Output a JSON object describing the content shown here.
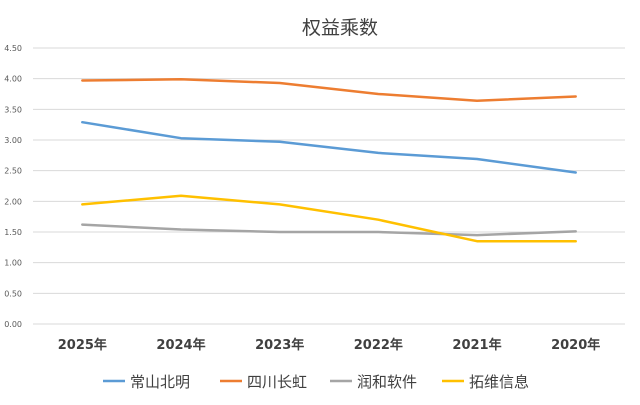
{
  "chart_data": {
    "type": "line",
    "title": "权益乘数",
    "categories": [
      "2025年",
      "2024年",
      "2023年",
      "2022年",
      "2021年",
      "2020年"
    ],
    "ylim": [
      0,
      4.5
    ],
    "yticks": [
      "0.00",
      "0.50",
      "1.00",
      "1.50",
      "2.00",
      "2.50",
      "3.00",
      "3.50",
      "4.00",
      "4.50"
    ],
    "grid": true,
    "legend_position": "bottom",
    "series": [
      {
        "name": "常山北明",
        "color": "#5b9bd5",
        "values": [
          3.29,
          3.03,
          2.97,
          2.79,
          2.69,
          2.47
        ]
      },
      {
        "name": "四川长虹",
        "color": "#ed7d31",
        "values": [
          3.97,
          3.99,
          3.93,
          3.75,
          3.64,
          3.71
        ]
      },
      {
        "name": "润和软件",
        "color": "#a5a5a5",
        "values": [
          1.62,
          1.54,
          1.5,
          1.5,
          1.45,
          1.51
        ]
      },
      {
        "name": "拓维信息",
        "color": "#ffc000",
        "values": [
          1.95,
          2.09,
          1.95,
          1.7,
          1.35,
          1.35
        ]
      }
    ]
  }
}
